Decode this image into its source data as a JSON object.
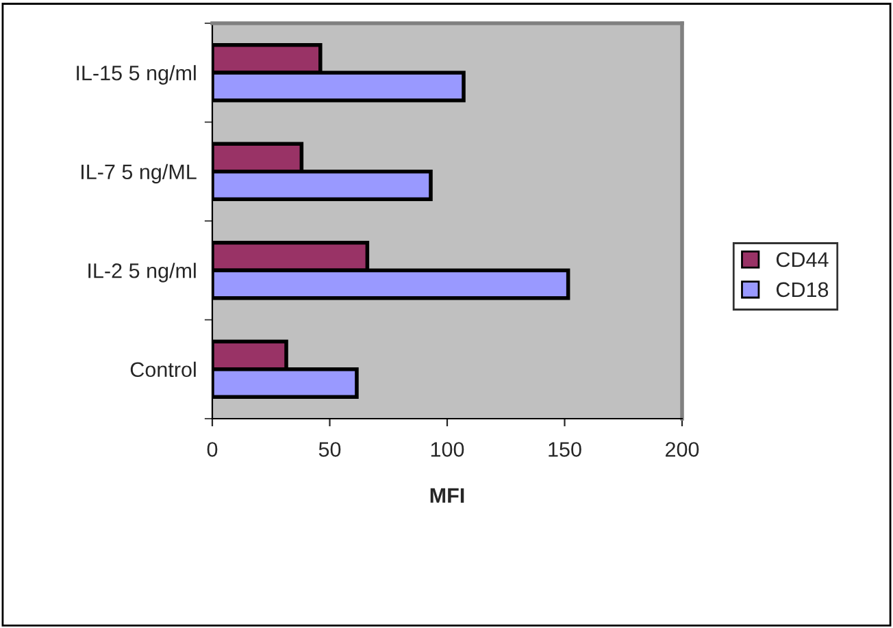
{
  "chart_data": {
    "type": "bar",
    "orientation": "horizontal",
    "xlabel": "MFI",
    "categories": [
      "IL-15 5 ng/ml",
      "IL-7 5 ng/ML",
      "IL-2 5 ng/ml",
      "Control"
    ],
    "series": [
      {
        "name": "CD44",
        "color": "#993366",
        "values": [
          46,
          38,
          66,
          31.5
        ]
      },
      {
        "name": "CD18",
        "color": "#9999ff",
        "values": [
          107,
          93,
          151.5,
          61.5
        ]
      }
    ],
    "xlim": [
      0,
      200
    ],
    "xticks": [
      0,
      50,
      100,
      150,
      200
    ],
    "grid": false,
    "legend": "right"
  }
}
